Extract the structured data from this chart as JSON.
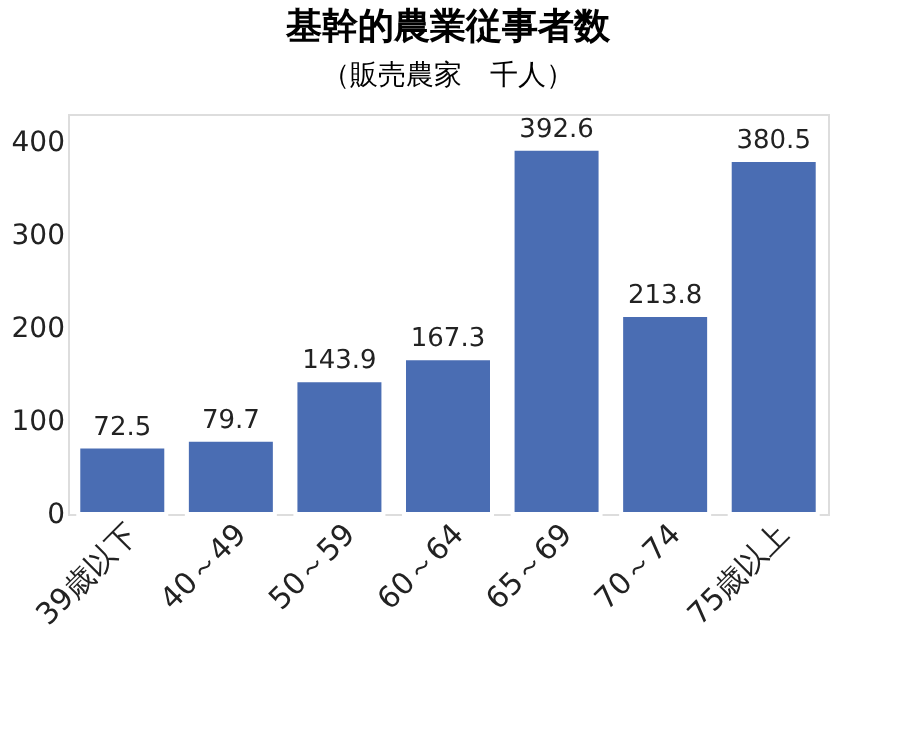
{
  "chart_data": {
    "type": "bar",
    "title": "基幹的農業従事者数",
    "subtitle": "（販売農家　千人）",
    "categories": [
      "39歳以下",
      "40～49",
      "50～59",
      "60～64",
      "65～69",
      "70～74",
      "75歳以上"
    ],
    "values": [
      72.5,
      79.7,
      143.9,
      167.3,
      392.6,
      213.8,
      380.5
    ],
    "color": "#4a6db3",
    "ylim": [
      0,
      430
    ],
    "yticks": [
      0,
      100,
      200,
      300,
      400
    ],
    "grid": false,
    "data_labels": true
  }
}
